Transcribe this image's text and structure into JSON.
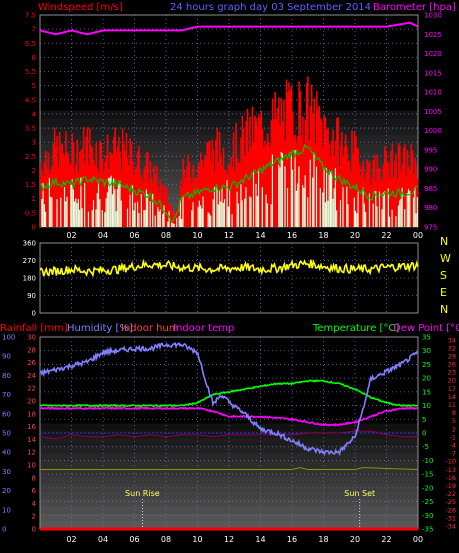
{
  "header": {
    "left_label": "Windspeed [m/s]",
    "center_label": "24 hours graph day 03 September 2014",
    "right_label": "Barometer [hpa]"
  },
  "hour_ticks": [
    "02",
    "04",
    "06",
    "08",
    "10",
    "12",
    "14",
    "16",
    "18",
    "20",
    "22",
    "00"
  ],
  "colors": {
    "windspeed": "#ff0000",
    "gust": "#ff0000",
    "avg_wind": "#00c000",
    "wind_bars": "#e0ffe0",
    "barometer": "#ff00ff",
    "direction": "#ffff00",
    "rainfall": "#ff0000",
    "humidity": "#8080ff",
    "indoor_hum": "#ff4040",
    "indoor_temp": "#ff00ff",
    "temperature": "#00ff00",
    "dewpoint": "#ff0000",
    "background": "#000000",
    "grid": "#7070c0"
  },
  "chart_data": [
    {
      "type": "line",
      "name": "wind-barometer",
      "x_hours": [
        0,
        24
      ],
      "y_left": {
        "label": "Windspeed [m/s]",
        "range": [
          0,
          7.5
        ],
        "ticks": [
          "0",
          "0.5",
          "1",
          "1.5",
          "2",
          "2.5",
          "3",
          "3.5",
          "4",
          "4.5",
          "5",
          "5.5",
          "6",
          "6.5",
          "7",
          "7.5"
        ]
      },
      "y_right": {
        "label": "Barometer [hpa]",
        "range": [
          975,
          1030
        ],
        "ticks": [
          "975",
          "980",
          "985",
          "990",
          "995",
          "1000",
          "1005",
          "1010",
          "1015",
          "1020",
          "1025",
          "1030"
        ]
      },
      "barometer": {
        "x": [
          0,
          1,
          2,
          3,
          4,
          5,
          6,
          7,
          8,
          9,
          10,
          12,
          14,
          16,
          18,
          20,
          22,
          23.5,
          24
        ],
        "values": [
          1026,
          1025,
          1026,
          1025,
          1026,
          1026,
          1026,
          1026,
          1026,
          1026,
          1027,
          1027,
          1027,
          1027,
          1027,
          1027,
          1027,
          1028,
          1027
        ]
      },
      "gust_envelope": {
        "x": [
          0,
          1,
          2,
          3,
          4,
          5,
          6,
          7,
          8,
          8.5,
          9,
          10,
          11,
          12,
          13,
          14,
          15,
          16,
          17,
          18,
          19,
          20,
          21,
          22,
          23,
          24
        ],
        "values": [
          2.5,
          3,
          2.8,
          3.2,
          2.8,
          3,
          2.6,
          2.2,
          1.2,
          0.4,
          2,
          2.5,
          3,
          2.8,
          3.5,
          3.8,
          4.2,
          4.5,
          4.5,
          3.8,
          3.2,
          2.8,
          2.2,
          2.5,
          2.5,
          2.6
        ]
      },
      "average_wind": {
        "x": [
          0,
          1,
          2,
          3,
          4,
          5,
          6,
          7,
          8,
          8.5,
          9,
          10,
          11,
          12,
          13,
          14,
          15,
          16,
          17,
          18,
          19,
          20,
          21,
          22,
          23,
          24
        ],
        "values": [
          1.4,
          1.6,
          1.5,
          1.7,
          1.6,
          1.5,
          1.3,
          1.1,
          0.6,
          0.2,
          1,
          1.2,
          1.4,
          1.4,
          1.7,
          2,
          2.3,
          2.6,
          2.8,
          2.1,
          1.7,
          1.4,
          1.1,
          1.2,
          1.2,
          1.3
        ]
      }
    },
    {
      "type": "scatter",
      "name": "wind-direction",
      "x_hours": [
        0,
        24
      ],
      "y_left": {
        "range": [
          0,
          360
        ],
        "ticks": [
          "0",
          "90",
          "180",
          "270",
          "360"
        ]
      },
      "compass_labels": [
        "N",
        "W",
        "S",
        "E",
        "N"
      ],
      "x": [
        0,
        1,
        2,
        3,
        4,
        5,
        6,
        7,
        8,
        9,
        10,
        11,
        12,
        13,
        14,
        15,
        16,
        17,
        18,
        19,
        20,
        21,
        22,
        23,
        24
      ],
      "values": [
        210,
        215,
        225,
        215,
        220,
        225,
        240,
        250,
        245,
        235,
        230,
        225,
        230,
        235,
        225,
        230,
        245,
        255,
        240,
        230,
        225,
        225,
        235,
        240,
        245
      ]
    },
    {
      "type": "line",
      "name": "temp-humidity",
      "x_hours": [
        0,
        24
      ],
      "axis_labels": {
        "rainfall": "Rainfall [mm]",
        "humidity": "Humidity [%]",
        "indoor_hum": "Indoor hum",
        "indoor_temp": "Indoor temp",
        "temperature": "Temperature [°C]",
        "dewpoint": "Dew Point [°C]"
      },
      "humidity_axis": {
        "range": [
          0,
          100
        ],
        "ticks": [
          "0",
          "10",
          "20",
          "30",
          "40",
          "50",
          "60",
          "70",
          "80",
          "90",
          "100"
        ]
      },
      "rain_axis": {
        "range": [
          0,
          30
        ],
        "ticks": [
          "0",
          "2",
          "4",
          "6",
          "8",
          "10",
          "12",
          "14",
          "16",
          "18",
          "20",
          "22",
          "24",
          "26",
          "28",
          "30"
        ]
      },
      "temp_axis": {
        "range": [
          -35,
          35
        ],
        "ticks": [
          "-35",
          "-30",
          "-25",
          "-20",
          "-15",
          "-10",
          "-5",
          "0",
          "5",
          "10",
          "15",
          "20",
          "25",
          "30",
          "35"
        ]
      },
      "dew_axis": {
        "ticks": [
          "-34",
          "-31",
          "-28",
          "-25",
          "-22",
          "-19",
          "-16",
          "-13",
          "-10",
          "-7",
          "-4",
          "-1",
          "2",
          "5",
          "8",
          "11",
          "14",
          "17",
          "20",
          "23",
          "26",
          "29",
          "32",
          "34"
        ]
      },
      "humidity": {
        "x": [
          0,
          1,
          2,
          3,
          4,
          5,
          6,
          7,
          8,
          9,
          10,
          10.5,
          11,
          11.5,
          12,
          13,
          14,
          15,
          16,
          17,
          18,
          19,
          20,
          20.5,
          21,
          22,
          23,
          24
        ],
        "values": [
          81,
          83,
          85,
          87,
          92,
          93,
          94,
          94,
          96,
          96,
          92,
          78,
          65,
          70,
          66,
          60,
          52,
          50,
          46,
          42,
          40,
          40,
          48,
          62,
          78,
          82,
          86,
          92
        ]
      },
      "temperature": {
        "x": [
          0,
          1,
          2,
          3,
          4,
          5,
          6,
          7,
          8,
          9,
          10,
          11,
          12,
          13,
          14,
          15,
          16,
          17,
          18,
          19,
          20,
          21,
          22,
          23,
          24
        ],
        "values": [
          10,
          10,
          10,
          10,
          10,
          10,
          10,
          10,
          10,
          10,
          11,
          14,
          15,
          16,
          17,
          18,
          18,
          19,
          19,
          18,
          16,
          13,
          11,
          10,
          10
        ]
      },
      "dewpoint": {
        "x": [
          0,
          2,
          4,
          6,
          8,
          10,
          11,
          12,
          14,
          16,
          18,
          19,
          20,
          21,
          22,
          23,
          24
        ],
        "values": [
          9,
          9,
          9,
          9,
          9,
          9,
          8,
          6,
          6,
          5,
          3,
          3,
          4,
          6,
          8,
          9,
          9
        ]
      },
      "indoor_hum": {
        "x": [
          0,
          1,
          2,
          3,
          4,
          5,
          6,
          7,
          8,
          9,
          10,
          11,
          12,
          13,
          14,
          15,
          16,
          17,
          18,
          19,
          20,
          21,
          22,
          23,
          24
        ],
        "values": [
          48,
          47,
          49,
          48,
          48,
          49,
          48,
          49,
          48,
          49,
          49,
          48,
          49,
          49,
          49,
          49,
          49,
          50,
          50,
          50,
          51,
          51,
          49,
          48,
          48
        ]
      },
      "indoor_temp": {
        "x": [
          0,
          4,
          8,
          12,
          16,
          16.5,
          17,
          20,
          20.5,
          24
        ],
        "values": [
          31,
          31,
          31,
          31,
          31,
          32,
          31,
          31,
          32,
          31
        ]
      },
      "rainfall": {
        "x": [
          0,
          24
        ],
        "values": [
          0,
          0
        ]
      },
      "markers": [
        {
          "label": "Sun Rise",
          "hour": 6.5
        },
        {
          "label": "Sun Set",
          "hour": 20.3
        }
      ]
    }
  ]
}
